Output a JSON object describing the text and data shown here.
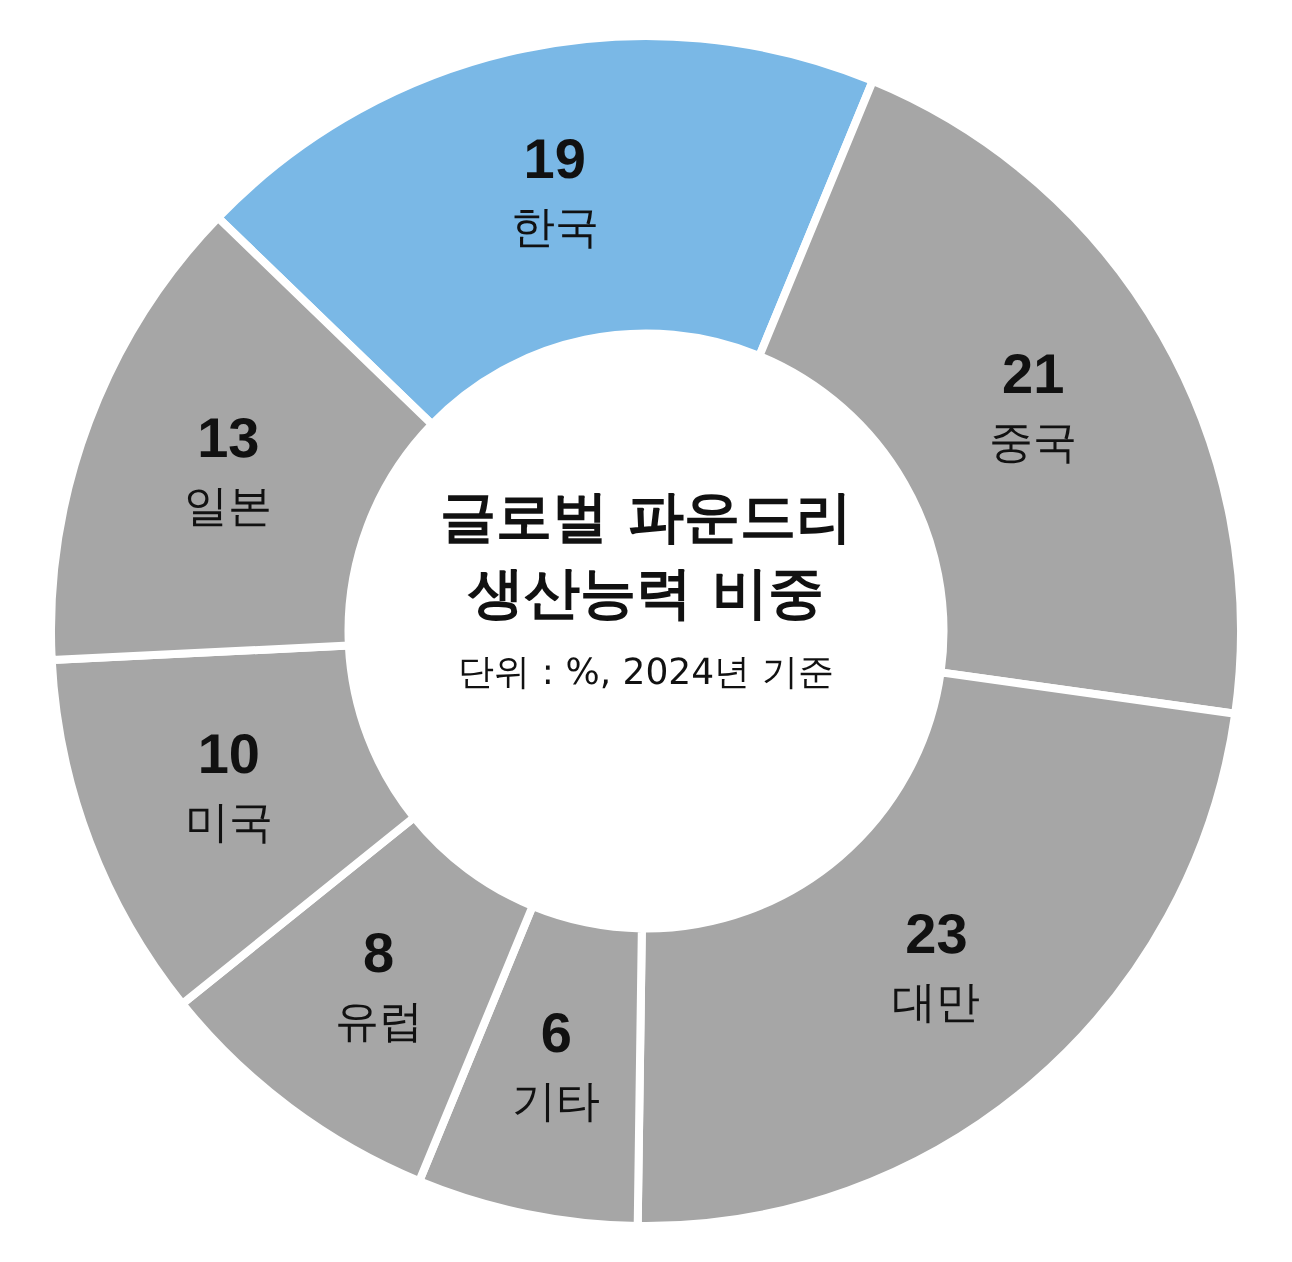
{
  "chart_data": {
    "type": "donut",
    "title": "글로벌 파운드리 생산능력 비중",
    "annotations": [
      "단위 : %, 2024년 기준"
    ],
    "categories": [
      "한국",
      "중국",
      "대만",
      "기타",
      "유럽",
      "미국",
      "일본"
    ],
    "values": [
      19,
      21,
      23,
      6,
      8,
      10,
      13
    ],
    "colors": [
      "#7ab8e6",
      "#a6a6a6",
      "#a6a6a6",
      "#a6a6a6",
      "#a6a6a6",
      "#a6a6a6",
      "#a6a6a6"
    ],
    "data_labels": true,
    "legend": false
  }
}
